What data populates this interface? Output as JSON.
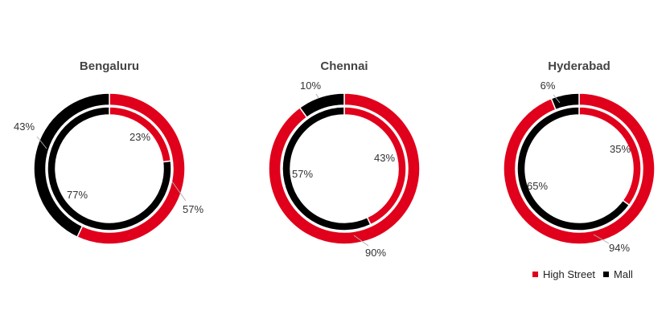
{
  "colors": {
    "high_street": "#e0001b",
    "mall": "#000000",
    "leader": "#b0b0b0"
  },
  "legend": [
    {
      "name": "High Street",
      "color": "#e0001b"
    },
    {
      "name": "Mall",
      "color": "#000000"
    }
  ],
  "chart_data": [
    {
      "type": "donut",
      "title": "Bengaluru",
      "series": [
        {
          "name": "High Street",
          "values": [
            57,
            43
          ],
          "labels": [
            "57%",
            "43%"
          ]
        },
        {
          "name": "Mall",
          "values": [
            23,
            77
          ],
          "labels": [
            "23%",
            "77%"
          ]
        }
      ]
    },
    {
      "type": "donut",
      "title": "Chennai",
      "series": [
        {
          "name": "High Street",
          "values": [
            90,
            10
          ],
          "labels": [
            "90%",
            "10%"
          ]
        },
        {
          "name": "Mall",
          "values": [
            43,
            57
          ],
          "labels": [
            "43%",
            "57%"
          ]
        }
      ]
    },
    {
      "type": "donut",
      "title": "Hyderabad",
      "series": [
        {
          "name": "High Street",
          "values": [
            94,
            6
          ],
          "labels": [
            "94%",
            "6%"
          ]
        },
        {
          "name": "Mall",
          "values": [
            35,
            65
          ],
          "labels": [
            "35%",
            "65%"
          ]
        }
      ]
    }
  ]
}
